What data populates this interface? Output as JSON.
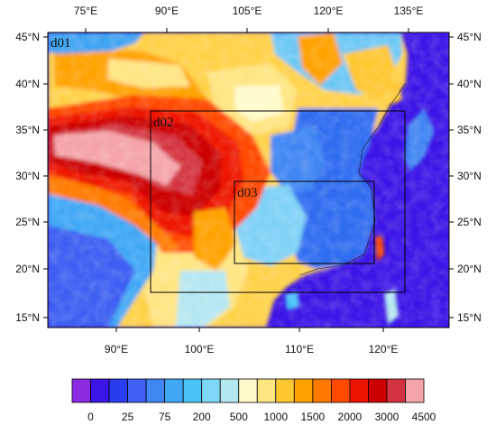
{
  "map": {
    "top_lon_labels": [
      "75°E",
      "90°E",
      "105°E",
      "120°E",
      "135°E"
    ],
    "bottom_lon_labels": [
      "90°E",
      "100°E",
      "110°E",
      "120°E"
    ],
    "left_lat_labels": [
      "45°N",
      "40°N",
      "35°N",
      "30°N",
      "25°N",
      "20°N",
      "15°N"
    ],
    "right_lat_labels": [
      "45°N",
      "40°N",
      "35°N",
      "30°N",
      "25°N",
      "20°N",
      "15°N"
    ],
    "domains": [
      {
        "name": "d01"
      },
      {
        "name": "d02"
      },
      {
        "name": "d03"
      }
    ]
  },
  "colorbar": {
    "labels": [
      "0",
      "25",
      "75",
      "200",
      "500",
      "1000",
      "1500",
      "2000",
      "3000",
      "4500"
    ],
    "colors": [
      "#8a2be2",
      "#3c14e6",
      "#2a3cf0",
      "#3e5ff2",
      "#3f86f3",
      "#41a8f5",
      "#47c3f8",
      "#7dd7f7",
      "#b5e7f1",
      "#fffbcc",
      "#ffe582",
      "#ffc730",
      "#ffa200",
      "#ff7a00",
      "#ff4a00",
      "#ee1500",
      "#cc0000",
      "#d4343f",
      "#f5a4a8"
    ]
  }
}
